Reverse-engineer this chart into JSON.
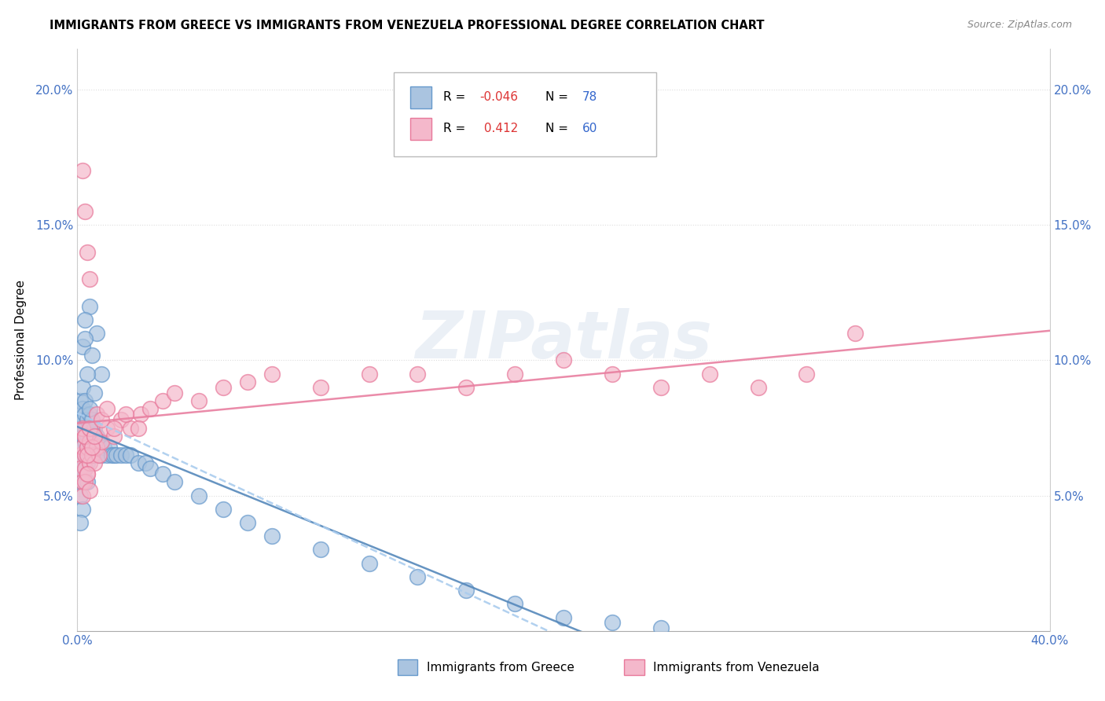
{
  "title": "IMMIGRANTS FROM GREECE VS IMMIGRANTS FROM VENEZUELA PROFESSIONAL DEGREE CORRELATION CHART",
  "source": "Source: ZipAtlas.com",
  "ylabel": "Professional Degree",
  "xlim": [
    0.0,
    0.4
  ],
  "ylim": [
    0.0,
    0.215
  ],
  "ytick_values": [
    0.05,
    0.1,
    0.15,
    0.2
  ],
  "ytick_labels": [
    "5.0%",
    "10.0%",
    "15.0%",
    "20.0%"
  ],
  "xtick_values": [
    0.0,
    0.4
  ],
  "xtick_labels": [
    "0.0%",
    "40.0%"
  ],
  "greece_color": "#aac4e0",
  "greece_edge": "#6699cc",
  "venezuela_color": "#f4b8cb",
  "venezuela_edge": "#e8789a",
  "legend_R_greece": "-0.046",
  "legend_N_greece": "78",
  "legend_R_venezuela": "0.412",
  "legend_N_venezuela": "60",
  "trend_greece_solid_color": "#5588bb",
  "trend_greece_dashed_color": "#aaccee",
  "trend_venezuela_color": "#e87fa0",
  "watermark": "ZIPatlas",
  "tick_color": "#4472c4",
  "axis_label_color": "#000000",
  "grid_color": "#dddddd",
  "background_color": "#ffffff",
  "greece_x": [
    0.001,
    0.001,
    0.001,
    0.001,
    0.001,
    0.002,
    0.002,
    0.002,
    0.002,
    0.002,
    0.002,
    0.003,
    0.003,
    0.003,
    0.003,
    0.003,
    0.004,
    0.004,
    0.004,
    0.004,
    0.005,
    0.005,
    0.005,
    0.005,
    0.006,
    0.006,
    0.006,
    0.007,
    0.007,
    0.007,
    0.008,
    0.008,
    0.009,
    0.009,
    0.01,
    0.01,
    0.011,
    0.012,
    0.013,
    0.014,
    0.015,
    0.016,
    0.018,
    0.02,
    0.022,
    0.025,
    0.028,
    0.03,
    0.035,
    0.04,
    0.05,
    0.06,
    0.07,
    0.08,
    0.1,
    0.12,
    0.14,
    0.16,
    0.18,
    0.2,
    0.22,
    0.24,
    0.01,
    0.008,
    0.005,
    0.003,
    0.002,
    0.004,
    0.006,
    0.003,
    0.002,
    0.001,
    0.003,
    0.004,
    0.002,
    0.001,
    0.005,
    0.007
  ],
  "greece_y": [
    0.075,
    0.08,
    0.07,
    0.065,
    0.085,
    0.078,
    0.072,
    0.068,
    0.082,
    0.06,
    0.09,
    0.075,
    0.07,
    0.065,
    0.08,
    0.085,
    0.072,
    0.068,
    0.078,
    0.062,
    0.075,
    0.07,
    0.065,
    0.08,
    0.072,
    0.068,
    0.078,
    0.075,
    0.07,
    0.065,
    0.072,
    0.068,
    0.07,
    0.065,
    0.07,
    0.065,
    0.068,
    0.065,
    0.068,
    0.065,
    0.065,
    0.065,
    0.065,
    0.065,
    0.065,
    0.062,
    0.062,
    0.06,
    0.058,
    0.055,
    0.05,
    0.045,
    0.04,
    0.035,
    0.03,
    0.025,
    0.02,
    0.015,
    0.01,
    0.005,
    0.003,
    0.001,
    0.095,
    0.11,
    0.12,
    0.115,
    0.105,
    0.095,
    0.102,
    0.108,
    0.055,
    0.05,
    0.06,
    0.055,
    0.045,
    0.04,
    0.082,
    0.088
  ],
  "venezuela_x": [
    0.001,
    0.001,
    0.002,
    0.002,
    0.003,
    0.003,
    0.003,
    0.004,
    0.004,
    0.005,
    0.005,
    0.006,
    0.007,
    0.008,
    0.009,
    0.01,
    0.012,
    0.015,
    0.018,
    0.022,
    0.026,
    0.03,
    0.035,
    0.04,
    0.05,
    0.06,
    0.07,
    0.08,
    0.1,
    0.12,
    0.14,
    0.16,
    0.18,
    0.2,
    0.22,
    0.24,
    0.26,
    0.28,
    0.3,
    0.32,
    0.002,
    0.003,
    0.004,
    0.005,
    0.006,
    0.007,
    0.008,
    0.01,
    0.012,
    0.015,
    0.02,
    0.025,
    0.002,
    0.003,
    0.004,
    0.005,
    0.003,
    0.002,
    0.004,
    0.005
  ],
  "venezuela_y": [
    0.065,
    0.06,
    0.068,
    0.055,
    0.072,
    0.06,
    0.065,
    0.068,
    0.058,
    0.07,
    0.062,
    0.065,
    0.062,
    0.068,
    0.065,
    0.07,
    0.075,
    0.072,
    0.078,
    0.075,
    0.08,
    0.082,
    0.085,
    0.088,
    0.085,
    0.09,
    0.092,
    0.095,
    0.09,
    0.095,
    0.095,
    0.09,
    0.095,
    0.1,
    0.095,
    0.09,
    0.095,
    0.09,
    0.095,
    0.11,
    0.075,
    0.072,
    0.065,
    0.075,
    0.068,
    0.072,
    0.08,
    0.078,
    0.082,
    0.075,
    0.08,
    0.075,
    0.05,
    0.055,
    0.058,
    0.052,
    0.155,
    0.17,
    0.14,
    0.13
  ]
}
